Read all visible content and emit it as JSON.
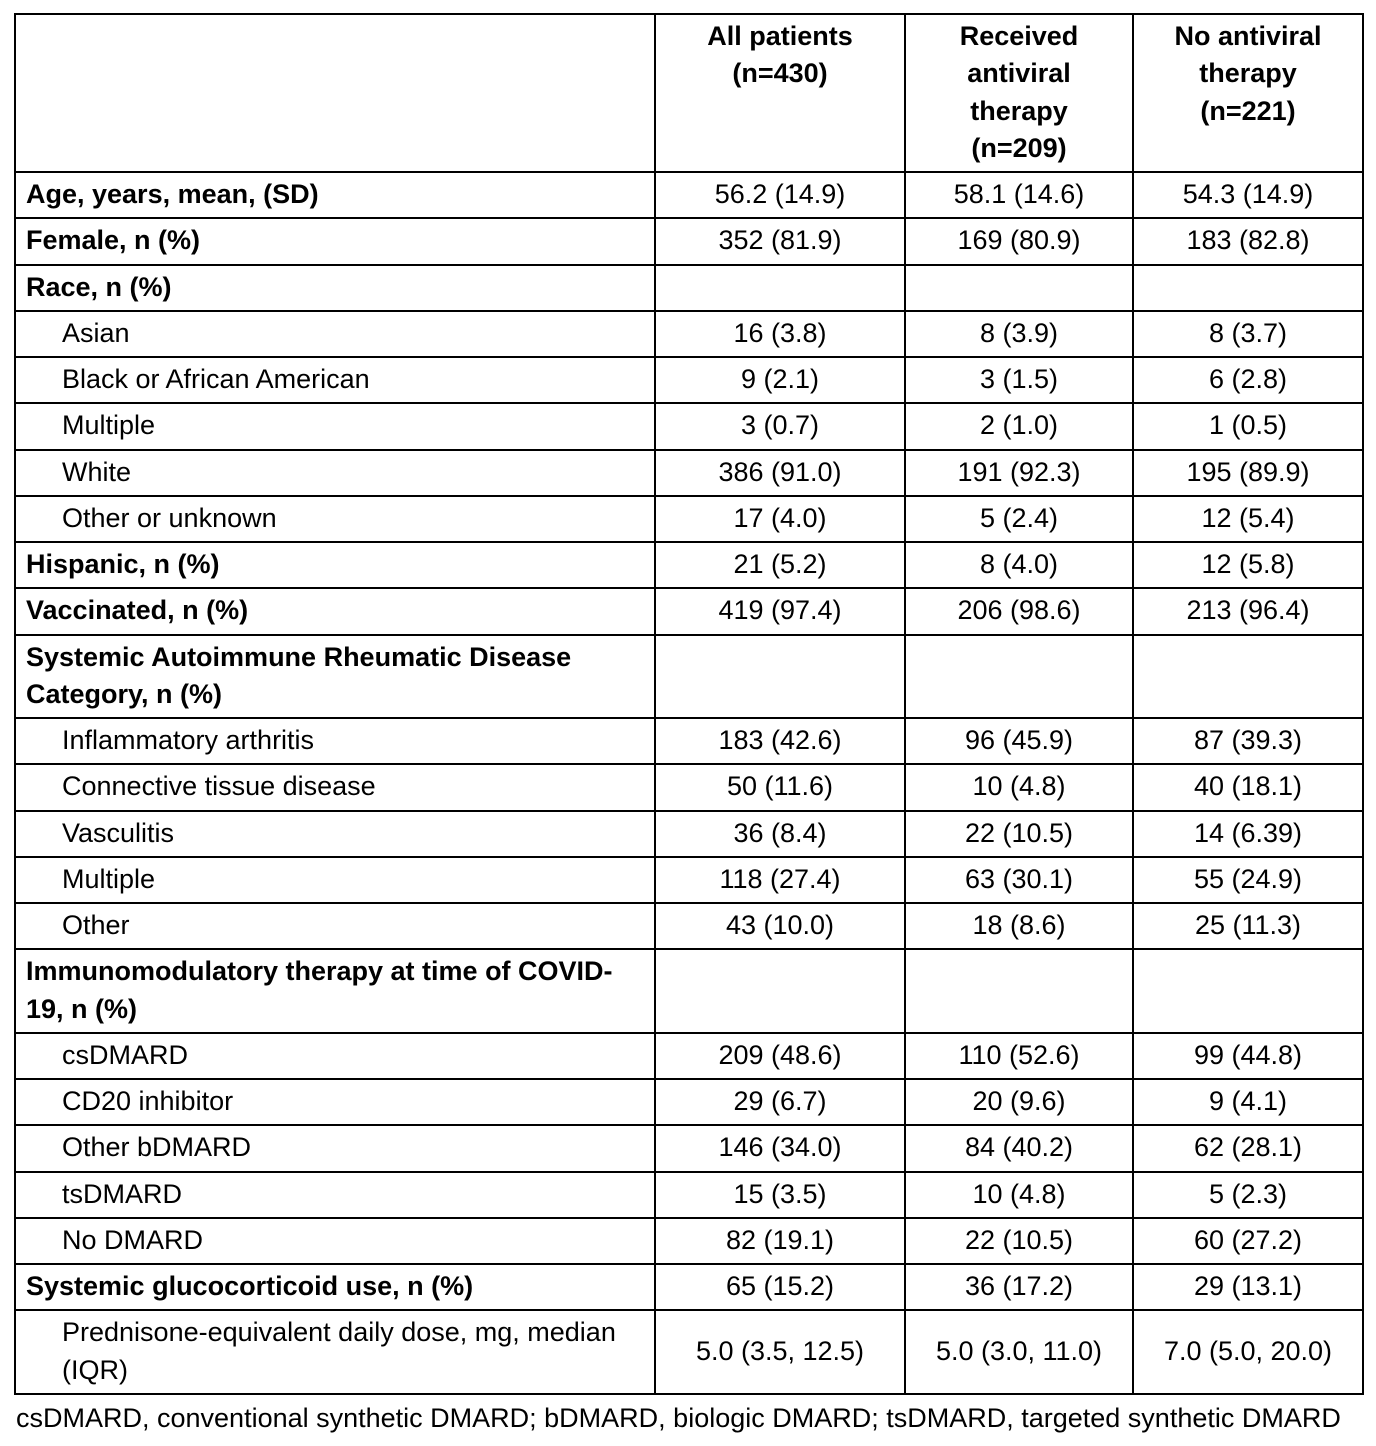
{
  "table": {
    "header": [
      "",
      "All patients\n(n=430)",
      "Received\nantiviral\ntherapy\n(n=209)",
      "No antiviral\ntherapy\n(n=221)"
    ],
    "rows": [
      {
        "label": "Age, years, mean, (SD)",
        "bold": true,
        "indent": false,
        "values": [
          "56.2 (14.9)",
          "58.1 (14.6)",
          "54.3 (14.9)"
        ]
      },
      {
        "label": "Female, n (%)",
        "bold": true,
        "indent": false,
        "values": [
          "352 (81.9)",
          "169 (80.9)",
          "183 (82.8)"
        ]
      },
      {
        "label": "Race, n (%)",
        "bold": true,
        "indent": false,
        "values": [
          "",
          "",
          ""
        ]
      },
      {
        "label": "Asian",
        "bold": false,
        "indent": true,
        "values": [
          "16 (3.8)",
          "8 (3.9)",
          "8 (3.7)"
        ]
      },
      {
        "label": "Black or African American",
        "bold": false,
        "indent": true,
        "values": [
          "9 (2.1)",
          "3 (1.5)",
          "6 (2.8)"
        ]
      },
      {
        "label": "Multiple",
        "bold": false,
        "indent": true,
        "values": [
          "3 (0.7)",
          "2 (1.0)",
          "1 (0.5)"
        ]
      },
      {
        "label": "White",
        "bold": false,
        "indent": true,
        "values": [
          "386 (91.0)",
          "191 (92.3)",
          "195 (89.9)"
        ]
      },
      {
        "label": "Other or unknown",
        "bold": false,
        "indent": true,
        "values": [
          "17 (4.0)",
          "5 (2.4)",
          "12 (5.4)"
        ]
      },
      {
        "label": "Hispanic, n (%)",
        "bold": true,
        "indent": false,
        "values": [
          "21 (5.2)",
          "8 (4.0)",
          "12 (5.8)"
        ]
      },
      {
        "label": "Vaccinated, n (%)",
        "bold": true,
        "indent": false,
        "values": [
          "419 (97.4)",
          "206 (98.6)",
          "213 (96.4)"
        ]
      },
      {
        "label": "Systemic Autoimmune Rheumatic Disease Category, n (%)",
        "bold": true,
        "indent": false,
        "values": [
          "",
          "",
          ""
        ]
      },
      {
        "label": "Inflammatory arthritis",
        "bold": false,
        "indent": true,
        "values": [
          "183 (42.6)",
          "96 (45.9)",
          "87 (39.3)"
        ]
      },
      {
        "label": "Connective tissue disease",
        "bold": false,
        "indent": true,
        "values": [
          "50 (11.6)",
          "10 (4.8)",
          "40 (18.1)"
        ]
      },
      {
        "label": "Vasculitis",
        "bold": false,
        "indent": true,
        "values": [
          "36 (8.4)",
          "22 (10.5)",
          "14 (6.39)"
        ]
      },
      {
        "label": "Multiple",
        "bold": false,
        "indent": true,
        "values": [
          "118 (27.4)",
          "63 (30.1)",
          "55 (24.9)"
        ]
      },
      {
        "label": "Other",
        "bold": false,
        "indent": true,
        "values": [
          "43 (10.0)",
          "18 (8.6)",
          "25 (11.3)"
        ]
      },
      {
        "label": "Immunomodulatory therapy at time of COVID-19, n (%)",
        "bold": true,
        "indent": false,
        "values": [
          "",
          "",
          ""
        ]
      },
      {
        "label": "csDMARD",
        "bold": false,
        "indent": true,
        "values": [
          "209 (48.6)",
          "110 (52.6)",
          "99 (44.8)"
        ]
      },
      {
        "label": "CD20 inhibitor",
        "bold": false,
        "indent": true,
        "values": [
          "29 (6.7)",
          "20 (9.6)",
          "9 (4.1)"
        ]
      },
      {
        "label": "Other bDMARD",
        "bold": false,
        "indent": true,
        "values": [
          "146 (34.0)",
          "84 (40.2)",
          "62 (28.1)"
        ]
      },
      {
        "label": "tsDMARD",
        "bold": false,
        "indent": true,
        "values": [
          "15 (3.5)",
          "10 (4.8)",
          "5 (2.3)"
        ]
      },
      {
        "label": "No DMARD",
        "bold": false,
        "indent": true,
        "values": [
          "82 (19.1)",
          "22 (10.5)",
          "60 (27.2)"
        ]
      },
      {
        "label": "Systemic glucocorticoid use, n (%)",
        "bold": true,
        "indent": false,
        "values": [
          "65 (15.2)",
          "36 (17.2)",
          "29 (13.1)"
        ]
      },
      {
        "label": "Prednisone-equivalent daily dose, mg, median (IQR)",
        "bold": false,
        "indent": true,
        "values": [
          "5.0 (3.5, 12.5)",
          "5.0 (3.0, 11.0)",
          "7.0 (5.0, 20.0)"
        ]
      }
    ],
    "footnote": "csDMARD, conventional synthetic DMARD; bDMARD, biologic DMARD; tsDMARD, targeted synthetic DMARD"
  },
  "chart_data": {
    "type": "table",
    "title": "Patient characteristics by antiviral therapy status",
    "columns": [
      "All patients (n=430)",
      "Received antiviral therapy (n=209)",
      "No antiviral therapy (n=221)"
    ],
    "row_labels": [
      "Age, years, mean, (SD)",
      "Female, n (%)",
      "Race, n (%)",
      "Asian",
      "Black or African American",
      "Multiple",
      "White",
      "Other or unknown",
      "Hispanic, n (%)",
      "Vaccinated, n (%)",
      "Systemic Autoimmune Rheumatic Disease Category, n (%)",
      "Inflammatory arthritis",
      "Connective tissue disease",
      "Vasculitis",
      "Multiple",
      "Other",
      "Immunomodulatory therapy at time of COVID-19, n (%)",
      "csDMARD",
      "CD20 inhibitor",
      "Other bDMARD",
      "tsDMARD",
      "No DMARD",
      "Systemic glucocorticoid use, n (%)",
      "Prednisone-equivalent daily dose, mg, median (IQR)"
    ]
  }
}
